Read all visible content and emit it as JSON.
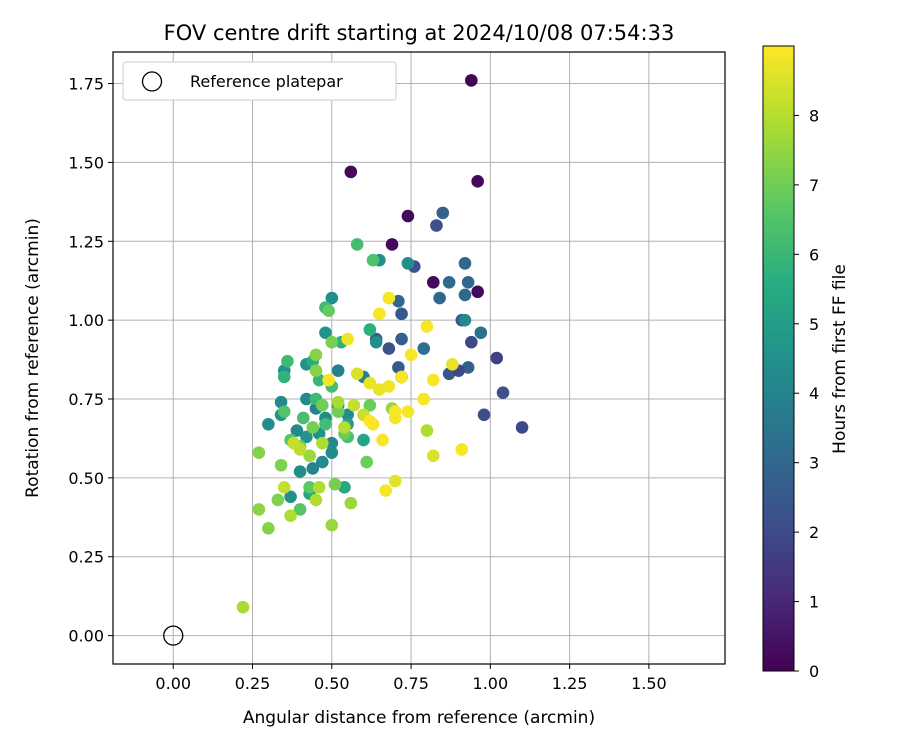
{
  "chart_data": {
    "type": "scatter",
    "title": "FOV centre drift starting at 2024/10/08 07:54:33",
    "xlabel": "Angular distance from reference (arcmin)",
    "ylabel": "Rotation from reference (arcmin)",
    "xlim": [
      -0.19,
      1.74
    ],
    "ylim": [
      -0.09,
      1.85
    ],
    "xticks": [
      0.0,
      0.25,
      0.5,
      0.75,
      1.0,
      1.25,
      1.5
    ],
    "xtick_labels": [
      "0.00",
      "0.25",
      "0.50",
      "0.75",
      "1.00",
      "1.25",
      "1.50"
    ],
    "yticks": [
      0.0,
      0.25,
      0.5,
      0.75,
      1.0,
      1.25,
      1.5,
      1.75
    ],
    "ytick_labels": [
      "0.00",
      "0.25",
      "0.50",
      "0.75",
      "1.00",
      "1.25",
      "1.50",
      "1.75"
    ],
    "grid": true,
    "colormap": "viridis",
    "colorbar": {
      "label": "Hours from first FF file",
      "range": [
        0,
        9
      ],
      "ticks": [
        0,
        1,
        2,
        3,
        4,
        5,
        6,
        7,
        8
      ],
      "tick_labels": [
        "0",
        "1",
        "2",
        "3",
        "4",
        "5",
        "6",
        "7",
        "8"
      ]
    },
    "legend": {
      "placement": "top-left",
      "entries": [
        "Reference platepar"
      ]
    },
    "reference_point": {
      "x": 0.0,
      "y": 0.0,
      "label": "Reference platepar"
    },
    "points": [
      [
        0.94,
        1.76,
        0.1
      ],
      [
        0.56,
        1.47,
        0.2
      ],
      [
        0.96,
        1.44,
        0.2
      ],
      [
        0.74,
        1.33,
        0.2
      ],
      [
        0.69,
        1.24,
        0.2
      ],
      [
        0.82,
        1.12,
        0.2
      ],
      [
        0.96,
        1.09,
        0.2
      ],
      [
        0.72,
        0.82,
        0.3
      ],
      [
        0.85,
        1.34,
        2.8
      ],
      [
        0.83,
        1.3,
        2.2
      ],
      [
        0.76,
        1.17,
        2.2
      ],
      [
        0.92,
        1.18,
        3.0
      ],
      [
        0.87,
        1.12,
        3.1
      ],
      [
        0.93,
        1.12,
        3.0
      ],
      [
        0.84,
        1.07,
        3.0
      ],
      [
        0.92,
        1.08,
        3.0
      ],
      [
        0.71,
        1.06,
        3.0
      ],
      [
        0.72,
        1.02,
        2.5
      ],
      [
        0.91,
        1.0,
        2.4
      ],
      [
        0.92,
        1.0,
        4.2
      ],
      [
        0.97,
        0.96,
        3.3
      ],
      [
        0.64,
        0.94,
        2.6
      ],
      [
        0.68,
        0.91,
        2.3
      ],
      [
        0.72,
        0.94,
        2.7
      ],
      [
        0.79,
        0.91,
        3.3
      ],
      [
        0.94,
        0.93,
        2.0
      ],
      [
        1.02,
        0.88,
        1.7
      ],
      [
        0.93,
        0.85,
        2.7
      ],
      [
        0.87,
        0.83,
        2.4
      ],
      [
        0.9,
        0.84,
        2.0
      ],
      [
        0.71,
        0.85,
        2.6
      ],
      [
        1.04,
        0.77,
        2.2
      ],
      [
        0.98,
        0.7,
        2.1
      ],
      [
        1.1,
        0.66,
        2.0
      ],
      [
        0.65,
        1.19,
        4.5
      ],
      [
        0.74,
        1.18,
        4.4
      ],
      [
        0.5,
        1.07,
        4.4
      ],
      [
        0.64,
        0.93,
        4.4
      ],
      [
        0.6,
        0.82,
        3.8
      ],
      [
        0.52,
        0.84,
        3.9
      ],
      [
        0.48,
        0.96,
        4.6
      ],
      [
        0.42,
        0.86,
        4.5
      ],
      [
        0.35,
        0.84,
        4.6
      ],
      [
        0.34,
        0.74,
        4.2
      ],
      [
        0.3,
        0.67,
        4.4
      ],
      [
        0.34,
        0.7,
        4.6
      ],
      [
        0.42,
        0.75,
        4.2
      ],
      [
        0.45,
        0.72,
        3.9
      ],
      [
        0.48,
        0.69,
        4.3
      ],
      [
        0.52,
        0.73,
        4.1
      ],
      [
        0.55,
        0.7,
        4.4
      ],
      [
        0.5,
        0.61,
        4.2
      ],
      [
        0.47,
        0.55,
        4.3
      ],
      [
        0.44,
        0.53,
        4.0
      ],
      [
        0.46,
        0.64,
        4.5
      ],
      [
        0.42,
        0.63,
        4.6
      ],
      [
        0.39,
        0.65,
        4.2
      ],
      [
        0.4,
        0.52,
        4.4
      ],
      [
        0.37,
        0.44,
        4.5
      ],
      [
        0.5,
        0.58,
        4.4
      ],
      [
        0.55,
        0.67,
        5.0
      ],
      [
        0.6,
        0.62,
        5.2
      ],
      [
        0.54,
        0.47,
        5.4
      ],
      [
        0.43,
        0.45,
        5.3
      ],
      [
        0.58,
        1.24,
        6.2
      ],
      [
        0.63,
        1.19,
        6.4
      ],
      [
        0.48,
        1.04,
        6.1
      ],
      [
        0.62,
        0.97,
        5.7
      ],
      [
        0.53,
        0.93,
        5.7
      ],
      [
        0.46,
        0.81,
        5.9
      ],
      [
        0.36,
        0.87,
        6.1
      ],
      [
        0.35,
        0.82,
        5.8
      ],
      [
        0.44,
        0.87,
        5.6
      ],
      [
        0.5,
        0.79,
        6.2
      ],
      [
        0.45,
        0.75,
        6.1
      ],
      [
        0.41,
        0.69,
        6.3
      ],
      [
        0.48,
        0.67,
        6.2
      ],
      [
        0.55,
        0.63,
        6.3
      ],
      [
        0.35,
        0.71,
        6.5
      ],
      [
        0.37,
        0.62,
        6.6
      ],
      [
        0.4,
        0.4,
        6.6
      ],
      [
        0.43,
        0.47,
        6.7
      ],
      [
        0.61,
        0.55,
        6.9
      ],
      [
        0.54,
        0.64,
        6.9
      ],
      [
        0.49,
        1.03,
        6.8
      ],
      [
        0.62,
        0.73,
        6.9
      ],
      [
        0.5,
        0.93,
        7.1
      ],
      [
        0.45,
        0.89,
        7.3
      ],
      [
        0.45,
        0.84,
        7.3
      ],
      [
        0.47,
        0.73,
        7.0
      ],
      [
        0.52,
        0.71,
        7.0
      ],
      [
        0.4,
        0.6,
        7.0
      ],
      [
        0.44,
        0.66,
        7.1
      ],
      [
        0.51,
        0.48,
        7.1
      ],
      [
        0.33,
        0.43,
        7.2
      ],
      [
        0.27,
        0.58,
        7.3
      ],
      [
        0.27,
        0.4,
        7.4
      ],
      [
        0.3,
        0.34,
        7.3
      ],
      [
        0.34,
        0.54,
        7.2
      ],
      [
        0.69,
        0.72,
        7.6
      ],
      [
        0.8,
        0.65,
        7.9
      ],
      [
        0.56,
        0.42,
        7.6
      ],
      [
        0.5,
        0.35,
        7.6
      ],
      [
        0.22,
        0.09,
        7.8
      ],
      [
        0.37,
        0.38,
        7.9
      ],
      [
        0.45,
        0.43,
        7.9
      ],
      [
        0.46,
        0.47,
        7.9
      ],
      [
        0.47,
        0.61,
        7.9
      ],
      [
        0.43,
        0.57,
        7.6
      ],
      [
        0.4,
        0.59,
        8.1
      ],
      [
        0.38,
        0.61,
        8.2
      ],
      [
        0.35,
        0.47,
        8.2
      ],
      [
        0.54,
        0.66,
        8.0
      ],
      [
        0.52,
        0.74,
        7.8
      ],
      [
        0.57,
        0.73,
        8.2
      ],
      [
        0.6,
        0.7,
        8.3
      ],
      [
        0.58,
        0.83,
        8.5
      ],
      [
        0.55,
        0.94,
        8.8
      ],
      [
        0.49,
        0.81,
        8.9
      ],
      [
        0.62,
        0.8,
        8.7
      ],
      [
        0.65,
        0.78,
        8.7
      ],
      [
        0.68,
        0.79,
        8.8
      ],
      [
        0.7,
        0.71,
        8.9
      ],
      [
        0.7,
        0.69,
        8.9
      ],
      [
        0.63,
        0.67,
        8.9
      ],
      [
        0.66,
        0.62,
        8.9
      ],
      [
        0.74,
        0.71,
        8.9
      ],
      [
        0.67,
        0.46,
        8.9
      ],
      [
        0.7,
        0.49,
        8.6
      ],
      [
        0.82,
        0.57,
        8.5
      ],
      [
        0.91,
        0.59,
        8.9
      ],
      [
        0.82,
        0.81,
        8.9
      ],
      [
        0.79,
        0.75,
        8.9
      ],
      [
        0.72,
        0.82,
        8.9
      ],
      [
        0.75,
        0.89,
        8.9
      ],
      [
        0.8,
        0.98,
        8.9
      ],
      [
        0.65,
        1.02,
        8.9
      ],
      [
        0.68,
        1.07,
        8.9
      ],
      [
        0.88,
        0.86,
        8.7
      ],
      [
        0.62,
        0.68,
        9.0
      ]
    ]
  }
}
